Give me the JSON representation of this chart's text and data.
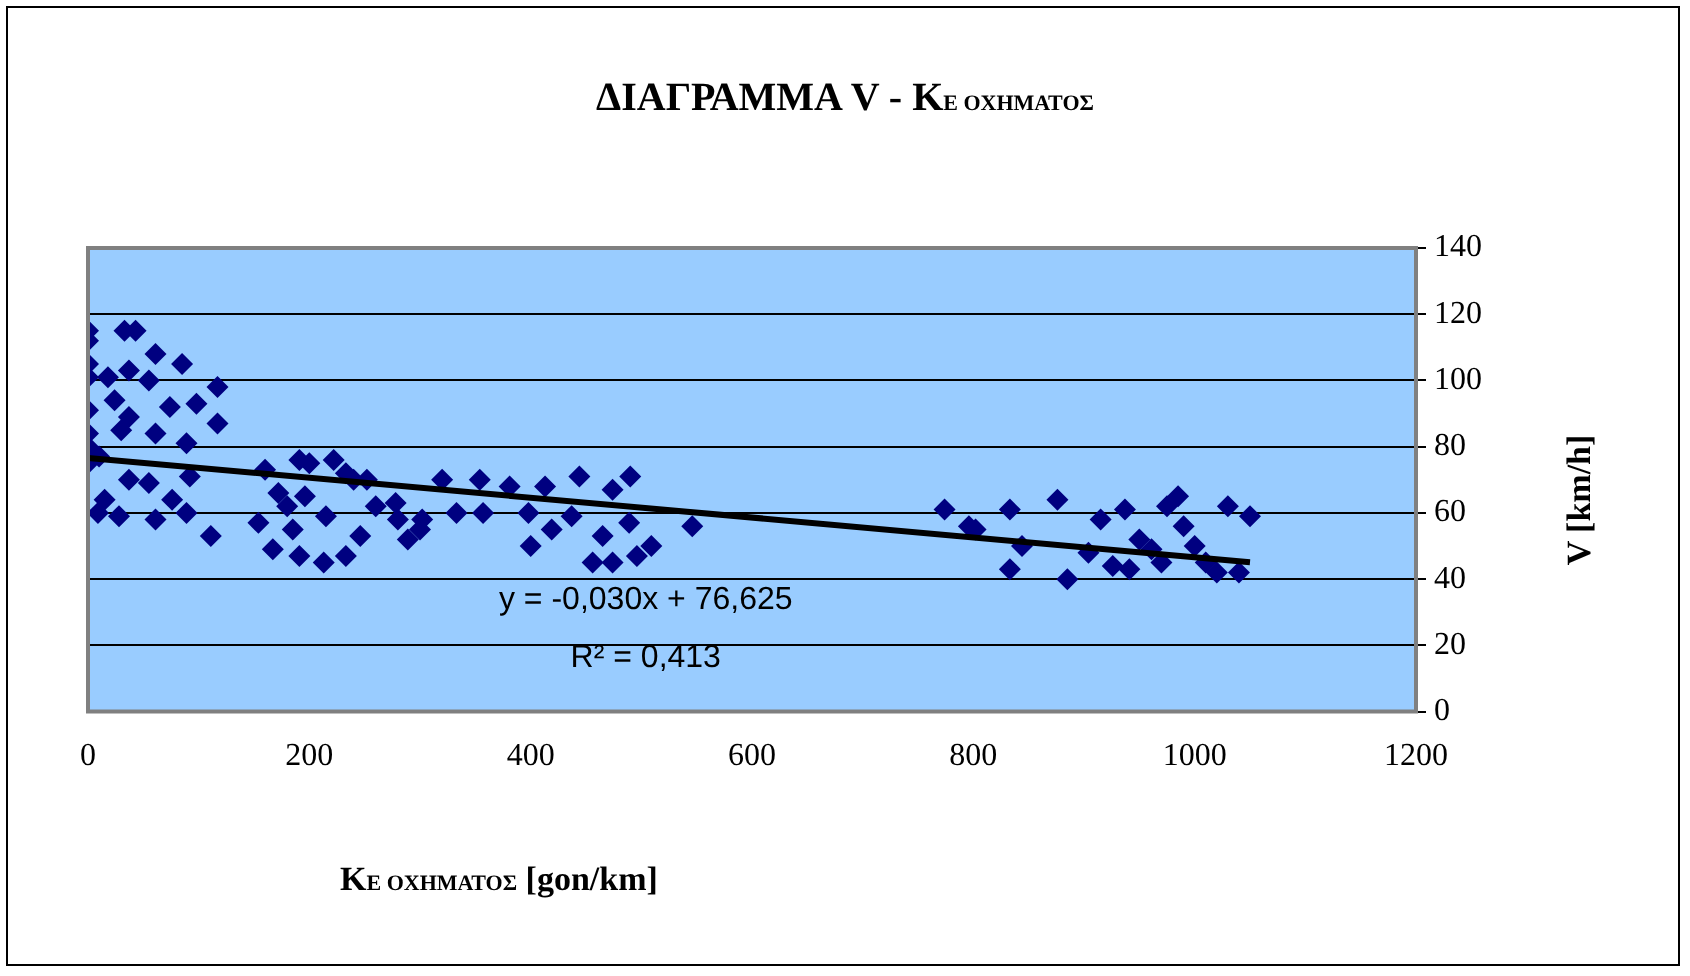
{
  "chart_data": {
    "type": "scatter",
    "title": "ΔΙΑΓΡΑΜΜΑ V - K$_{Ε ΟΧΗΜΑΤΟΣ}$",
    "xlabel": "K$_{Ε ΟΧΗΜΑΤΟΣ}$ [gon/km]",
    "ylabel": "V [km/h]",
    "xlim": [
      0,
      1200
    ],
    "xticks": [
      0,
      200,
      400,
      600,
      800,
      1000,
      1200
    ],
    "ylim": [
      0,
      140
    ],
    "yticks": [
      0,
      20,
      40,
      60,
      80,
      100,
      120,
      140
    ],
    "grid": "y",
    "legend": false,
    "annotations": [
      "y = -0,030x + 76,625",
      "R² = 0,413"
    ],
    "series": [
      {
        "color": "#000080",
        "marker": "diamond",
        "x": [
          0,
          33,
          43,
          61,
          85,
          0,
          0,
          0,
          18,
          37,
          55,
          117,
          24,
          74,
          98,
          0,
          37,
          117,
          0,
          30,
          61,
          89,
          0,
          10,
          0,
          37,
          55,
          92,
          15,
          9,
          28,
          61,
          76,
          89,
          111,
          154,
          167,
          191,
          213,
          233,
          246,
          289,
          302,
          278,
          252,
          233,
          172,
          196,
          215,
          185,
          191,
          222,
          160,
          200,
          240,
          180,
          260,
          280,
          300,
          320,
          354,
          333,
          357,
          381,
          413,
          444,
          490,
          474,
          400,
          398,
          419,
          437,
          456,
          474,
          496,
          509,
          465,
          489,
          546,
          774,
          796,
          802,
          833,
          833,
          844,
          876,
          885,
          915,
          937,
          926,
          941,
          904,
          961,
          950,
          975,
          985,
          1000,
          1010,
          1020,
          1030,
          1040,
          1050,
          990,
          970
        ],
        "values": [
          115,
          115,
          115,
          108,
          105,
          112,
          105,
          101,
          101,
          103,
          100,
          98,
          94,
          92,
          93,
          91,
          89,
          87,
          84,
          85,
          84,
          81,
          80,
          77,
          75,
          70,
          69,
          71,
          64,
          60,
          59,
          58,
          64,
          60,
          53,
          57,
          49,
          47,
          45,
          47,
          53,
          52,
          58,
          63,
          70,
          72,
          66,
          65,
          59,
          55,
          76,
          76,
          73,
          75,
          70,
          62,
          62,
          58,
          55,
          70,
          70,
          60,
          60,
          68,
          68,
          71,
          71,
          67,
          50,
          60,
          55,
          59,
          45,
          45,
          47,
          50,
          53,
          57,
          56,
          61,
          56,
          55,
          61,
          43,
          50,
          64,
          40,
          58,
          61,
          44,
          43,
          48,
          49,
          52,
          62,
          65,
          50,
          45,
          42,
          62,
          42,
          59,
          56,
          45
        ]
      },
      {
        "type": "line",
        "color": "#000000",
        "marker": "none",
        "line_style": "solid",
        "x": [
          0,
          1050
        ],
        "values": [
          76.6,
          45.1
        ]
      }
    ]
  }
}
